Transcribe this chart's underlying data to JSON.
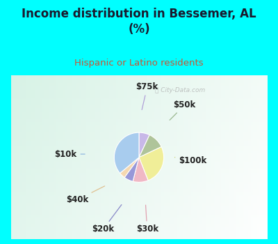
{
  "title": "Income distribution in Bessemer, AL\n(%)",
  "subtitle": "Hispanic or Latino residents",
  "title_color": "#1a1a2e",
  "subtitle_color": "#cc5533",
  "bg_cyan": "#00ffff",
  "labels": [
    "$75k",
    "$50k",
    "$100k",
    "$30k",
    "$20k",
    "$40k",
    "$10k"
  ],
  "sizes": [
    7,
    11,
    26,
    10,
    6,
    4,
    36
  ],
  "colors": [
    "#c8b8e8",
    "#afc49a",
    "#f0ee98",
    "#f0b8c5",
    "#9898d8",
    "#f5d8b0",
    "#a8ccee"
  ],
  "startangle": 90,
  "watermark": "ⓘ City-Data.com",
  "label_font_size": 8.5,
  "line_colors": [
    "#b0a0d8",
    "#9ab890",
    "#d8d870",
    "#e0a0b0",
    "#8888c8",
    "#e0c090",
    "#90b8e0"
  ]
}
